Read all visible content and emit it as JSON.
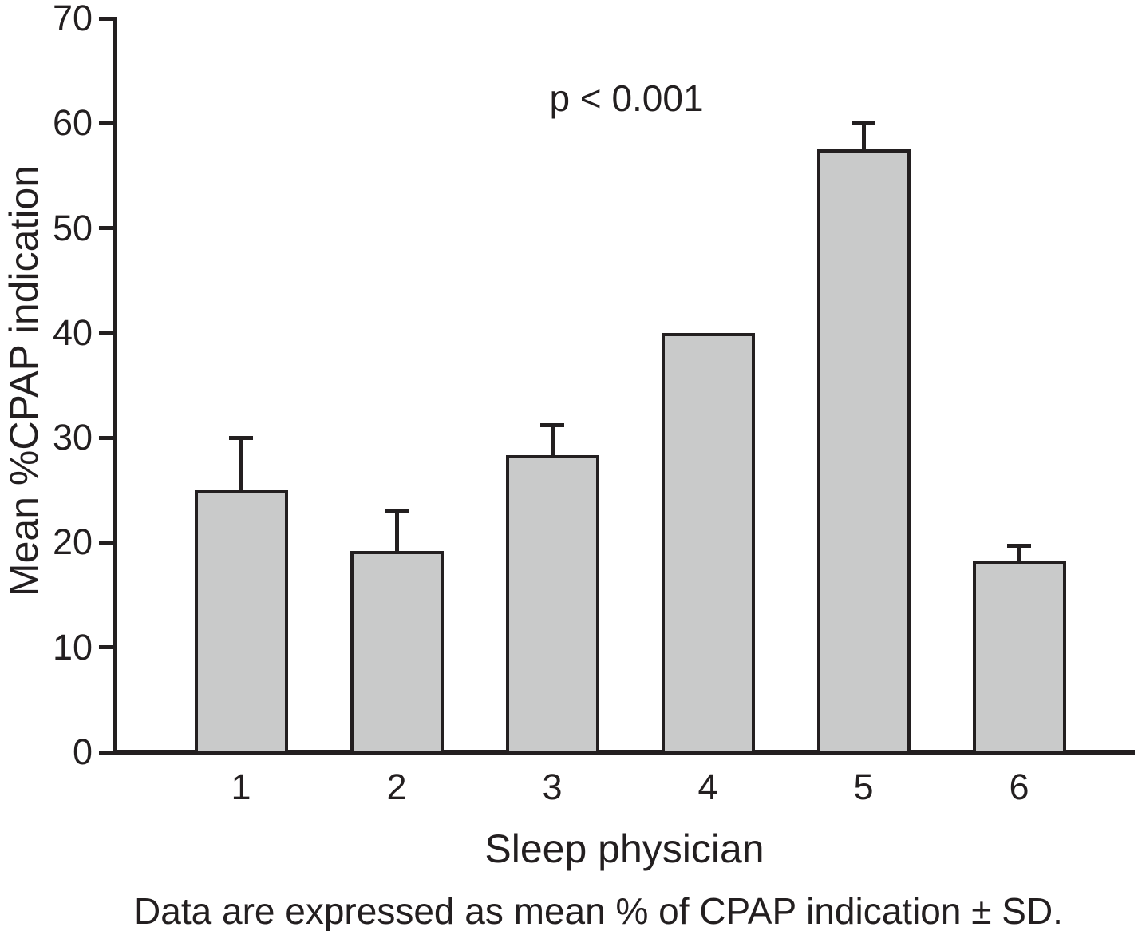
{
  "chart_data": {
    "type": "bar",
    "annotation": "p < 0.001",
    "categories": [
      "1",
      "2",
      "3",
      "4",
      "5",
      "6"
    ],
    "values": [
      25,
      19.2,
      28.3,
      40,
      57.5,
      18.3
    ],
    "sd_plus": [
      5,
      3.8,
      2.9,
      0,
      2.5,
      1.4
    ],
    "xlabel": "Sleep physician",
    "ylabel": "Mean %CPAP indication",
    "caption": "Data are expressed as mean % of CPAP indication ± SD.",
    "ylim": [
      0,
      70
    ],
    "yticks": [
      "0",
      "10",
      "20",
      "30",
      "40",
      "50",
      "60",
      "70"
    ],
    "legend": "none",
    "grid": "off",
    "bar_fill_color": "#c9caca",
    "stroke_color": "#231f20"
  }
}
